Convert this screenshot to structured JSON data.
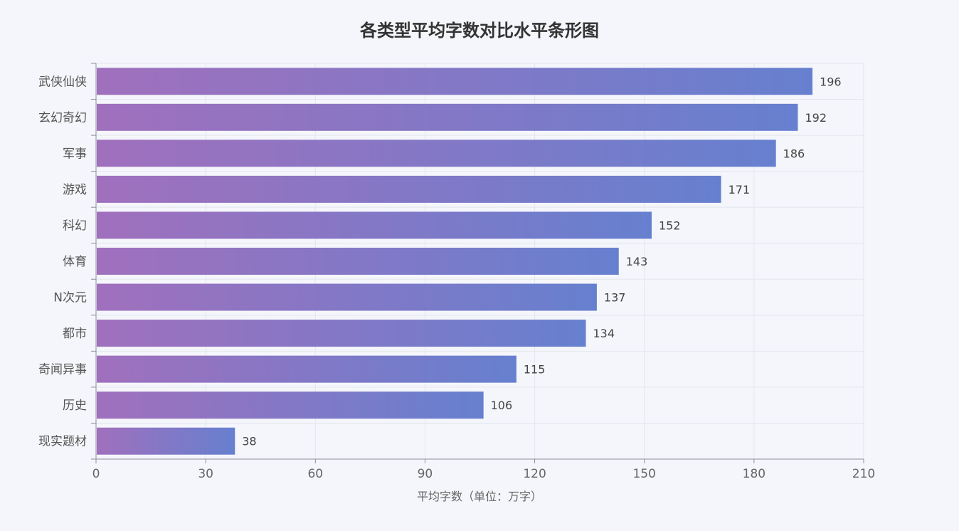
{
  "chart_data": {
    "type": "bar",
    "orientation": "horizontal",
    "title": "各类型平均字数对比水平条形图",
    "xlabel": "平均字数（单位：万字）",
    "ylabel": "",
    "xlim": [
      0,
      210
    ],
    "xticks": [
      0,
      30,
      60,
      90,
      120,
      150,
      180,
      210
    ],
    "grid": true,
    "categories": [
      "武侠仙侠",
      "玄幻奇幻",
      "军事",
      "游戏",
      "科幻",
      "体育",
      "N次元",
      "都市",
      "奇闻异事",
      "历史",
      "现实题材"
    ],
    "values": [
      196,
      192,
      186,
      171,
      152,
      143,
      137,
      134,
      115,
      106,
      38
    ],
    "colors": {
      "bar_gradient_start": "#a070bd",
      "bar_gradient_end": "#6680cf",
      "grid": "#e3e6ef",
      "axis": "#8a8f9c",
      "background": "#f5f6fb"
    }
  }
}
